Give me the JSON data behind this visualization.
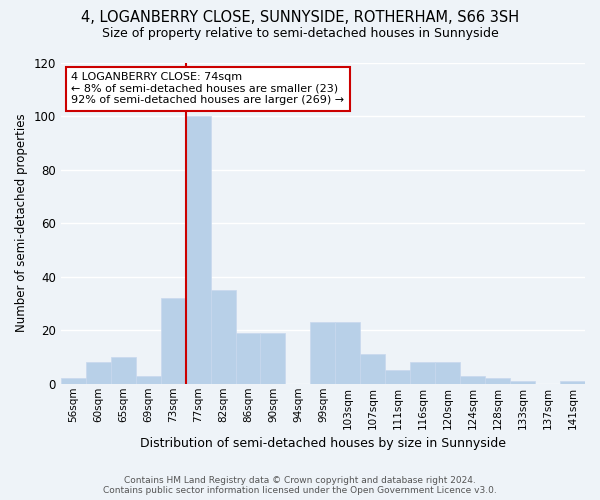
{
  "title": "4, LOGANBERRY CLOSE, SUNNYSIDE, ROTHERHAM, S66 3SH",
  "subtitle": "Size of property relative to semi-detached houses in Sunnyside",
  "xlabel": "Distribution of semi-detached houses by size in Sunnyside",
  "ylabel": "Number of semi-detached properties",
  "bin_labels": [
    "56sqm",
    "60sqm",
    "65sqm",
    "69sqm",
    "73sqm",
    "77sqm",
    "82sqm",
    "86sqm",
    "90sqm",
    "94sqm",
    "99sqm",
    "103sqm",
    "107sqm",
    "111sqm",
    "116sqm",
    "120sqm",
    "124sqm",
    "128sqm",
    "133sqm",
    "137sqm",
    "141sqm"
  ],
  "bin_values": [
    2,
    8,
    10,
    3,
    32,
    100,
    35,
    19,
    19,
    0,
    23,
    23,
    11,
    5,
    8,
    8,
    3,
    2,
    1,
    0,
    1
  ],
  "bar_color": "#b8d0e8",
  "bar_edge_color": "#c8d8ee",
  "background_color": "#eef3f8",
  "grid_color": "#ffffff",
  "property_line_bin_idx": 4,
  "annotation_line1": "4 LOGANBERRY CLOSE: 74sqm",
  "annotation_line2": "← 8% of semi-detached houses are smaller (23)",
  "annotation_line3": "92% of semi-detached houses are larger (269) →",
  "annotation_box_color": "#ffffff",
  "annotation_box_edge_color": "#cc0000",
  "vline_color": "#cc0000",
  "ylim": [
    0,
    120
  ],
  "yticks": [
    0,
    20,
    40,
    60,
    80,
    100,
    120
  ],
  "title_fontsize": 10.5,
  "subtitle_fontsize": 9,
  "footer_line1": "Contains HM Land Registry data © Crown copyright and database right 2024.",
  "footer_line2": "Contains public sector information licensed under the Open Government Licence v3.0."
}
